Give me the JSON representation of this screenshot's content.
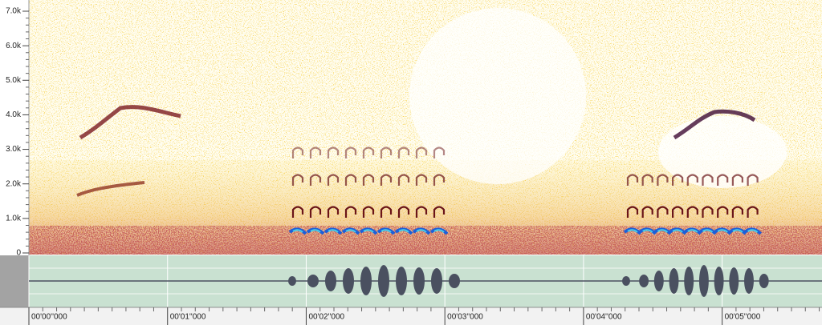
{
  "spectrogram": {
    "frequency_axis": {
      "range": [
        0,
        7330
      ],
      "ticks": [
        {
          "value": 0,
          "label": "0"
        },
        {
          "value": 1000,
          "label": "1.0k"
        },
        {
          "value": 2000,
          "label": "2.0k"
        },
        {
          "value": 3000,
          "label": "3.0k"
        },
        {
          "value": 4000,
          "label": "4.0k"
        },
        {
          "value": 5000,
          "label": "5.0k"
        },
        {
          "value": 6000,
          "label": "6.0k"
        },
        {
          "value": 7000,
          "label": "7.0k"
        }
      ]
    },
    "time_axis": {
      "range": [
        0,
        5.72
      ],
      "ticks": [
        {
          "value": 0,
          "label": "00'00''000"
        },
        {
          "value": 1,
          "label": "00'01''000"
        },
        {
          "value": 2,
          "label": "00'02''000"
        },
        {
          "value": 3,
          "label": "00'03''000"
        },
        {
          "value": 4,
          "label": "00'04''000"
        },
        {
          "value": 5,
          "label": "00'05''000"
        }
      ]
    }
  }
}
